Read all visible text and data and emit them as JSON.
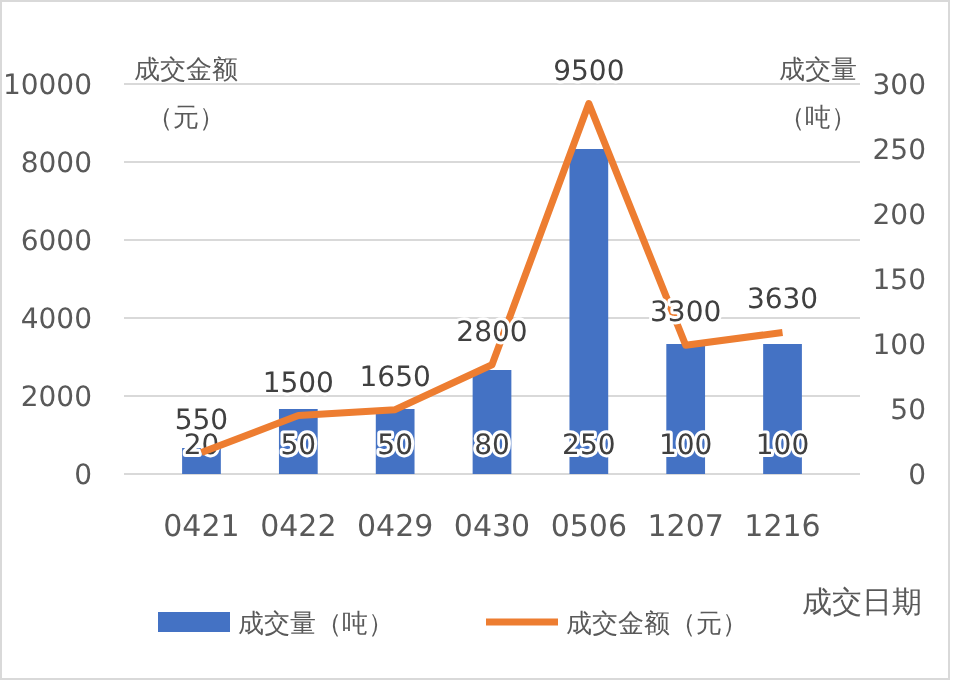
{
  "chart_data": {
    "type": "bar",
    "categories": [
      "0421",
      "0422",
      "0429",
      "0430",
      "0506",
      "1207",
      "1216"
    ],
    "series": [
      {
        "name": "成交量（吨）",
        "axis": "y2",
        "color": "#4472c4",
        "values": [
          20,
          50,
          50,
          80,
          250,
          100,
          100
        ]
      },
      {
        "name": "成交金额（元）",
        "type": "line",
        "axis": "y",
        "color": "#ed7d31",
        "values": [
          550,
          1500,
          1650,
          2800,
          9500,
          3300,
          3630
        ]
      }
    ],
    "ylabel": "成交金额（元）",
    "y2label": "成交量（吨）",
    "xlabel": "成交日期",
    "ylim": [
      0,
      10000
    ],
    "yticks": [
      0,
      2000,
      4000,
      6000,
      8000,
      10000
    ],
    "y2lim": [
      0,
      300
    ],
    "y2ticks": [
      0,
      50,
      100,
      150,
      200,
      250,
      300
    ],
    "grid": "y",
    "legend": "bottom",
    "data_labels": true,
    "marker": "none",
    "line_style": "solid"
  }
}
